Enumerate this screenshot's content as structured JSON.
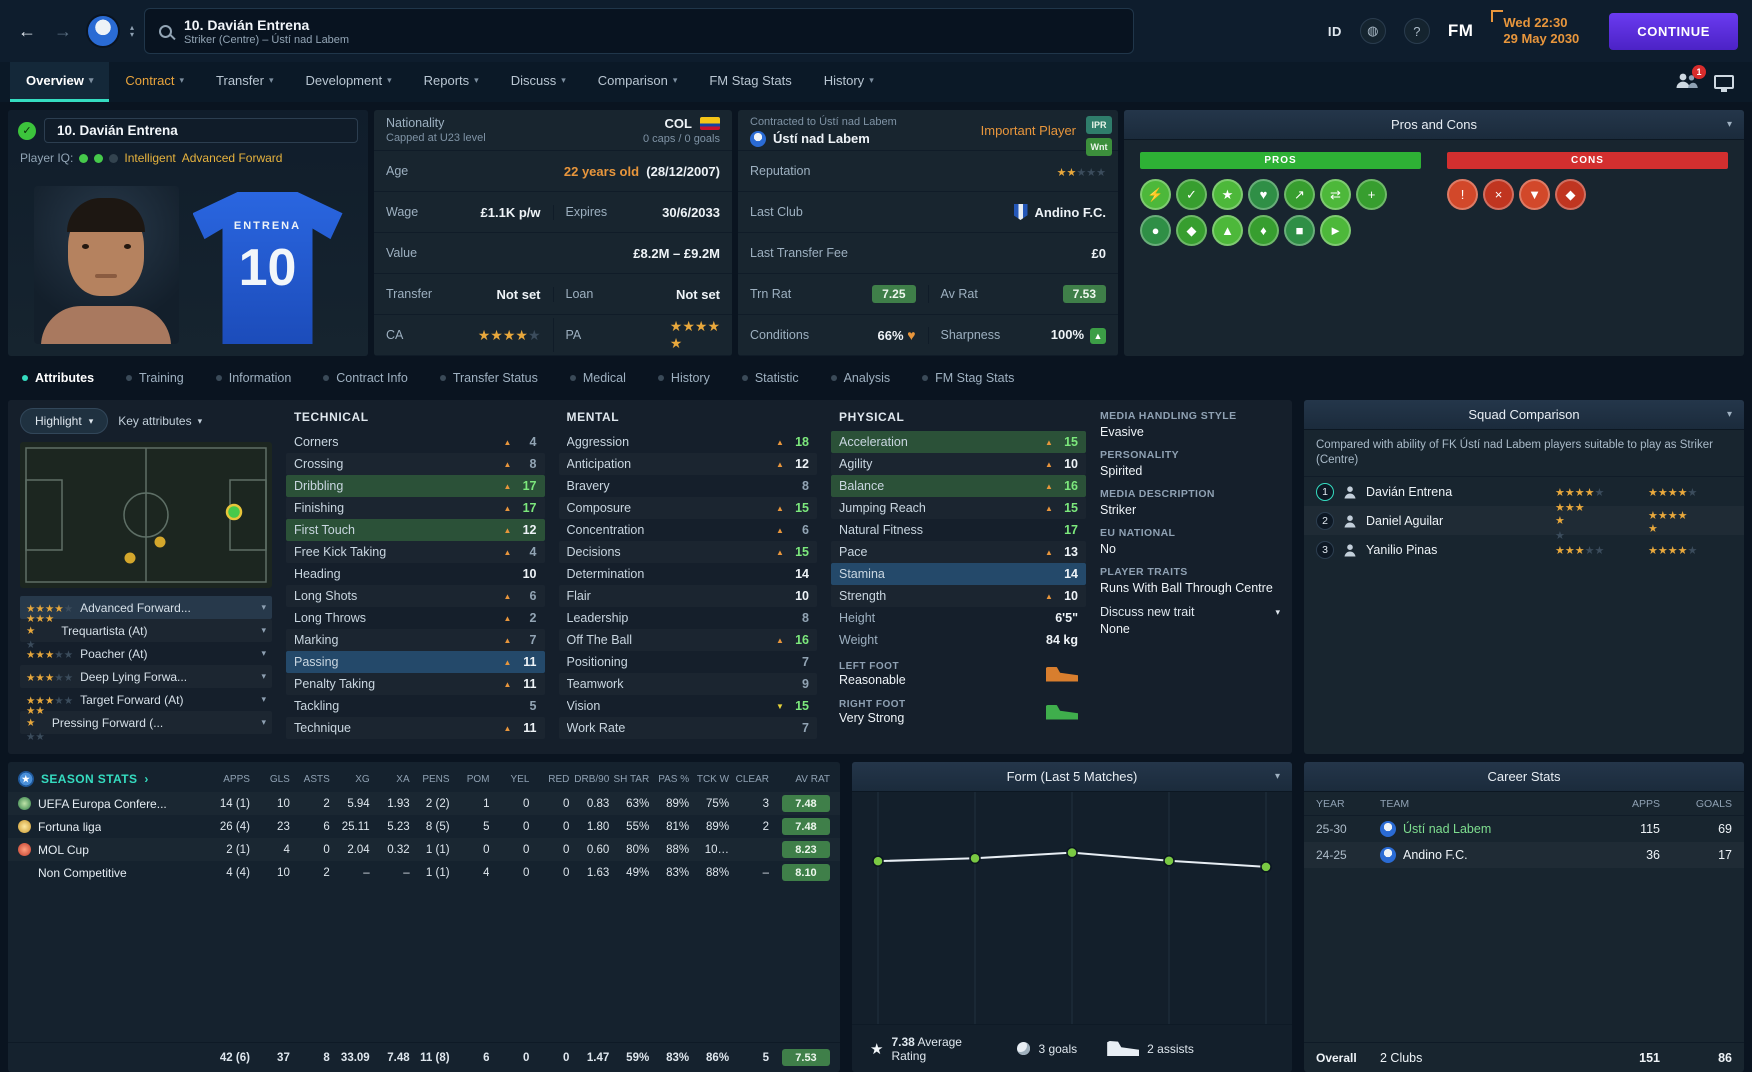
{
  "topbar": {
    "player_number_name": "10. Davián Entrena",
    "player_subtitle": "Striker (Centre) – Ústí nad Labem",
    "id_label": "ID",
    "help_label": "?",
    "fm_label": "FM",
    "date_time": "Wed 22:30",
    "date": "29 May 2030",
    "continue_label": "CONTINUE"
  },
  "nav": {
    "tabs": [
      {
        "label": "Overview",
        "caret": true,
        "state": "sel"
      },
      {
        "label": "Contract",
        "caret": true,
        "state": "warn"
      },
      {
        "label": "Transfer",
        "caret": true
      },
      {
        "label": "Development",
        "caret": true
      },
      {
        "label": "Reports",
        "caret": true
      },
      {
        "label": "Discuss",
        "caret": true
      },
      {
        "label": "Comparison",
        "caret": true
      },
      {
        "label": "FM Stag Stats"
      },
      {
        "label": "History",
        "caret": true
      }
    ],
    "notification_count": "1"
  },
  "player_card": {
    "name": "10. Davián Entrena",
    "iq_label": "Player IQ:",
    "iq_desc_1": "Intelligent",
    "iq_desc_2": "Advanced Forward",
    "shirt_name": "ENTRENA",
    "shirt_number": "10"
  },
  "info": {
    "nationality_label": "Nationality",
    "nationality_sub": "Capped at U23 level",
    "nationality_value": "COL",
    "caps": "0 caps / 0 goals",
    "age_label": "Age",
    "age_value": "22 years old",
    "birth_date": "(28/12/2007)",
    "wage_label": "Wage",
    "wage_value": "£1.1K p/w",
    "expires_label": "Expires",
    "expires_value": "30/6/2033",
    "value_label": "Value",
    "value_value": "£8.2M – £9.2M",
    "transfer_label": "Transfer",
    "transfer_value": "Not set",
    "loan_label": "Loan",
    "loan_value": "Not set",
    "ca_label": "CA",
    "ca_stars": 4,
    "pa_label": "PA",
    "pa_stars": 4.5
  },
  "contract": {
    "contracted_label": "Contracted to Ústí nad Labem",
    "club": "Ústí nad Labem",
    "importance": "Important Player",
    "badge_ipr": "IPR",
    "badge_wnt": "Wnt",
    "reputation_label": "Reputation",
    "reputation_stars": 2,
    "last_club_label": "Last Club",
    "last_club": "Andino F.C.",
    "last_fee_label": "Last Transfer Fee",
    "last_fee": "£0",
    "trn_rat_label": "Trn Rat",
    "trn_rat": "7.25",
    "av_rat_label": "Av Rat",
    "av_rat": "7.53",
    "conditions_label": "Conditions",
    "conditions": "66%",
    "sharpness_label": "Sharpness",
    "sharpness": "100%"
  },
  "pros_cons": {
    "title": "Pros and Cons",
    "pros_label": "PROS",
    "cons_label": "CONS",
    "pros_icons": [
      {
        "glyph": "⚡",
        "tone": "g1"
      },
      {
        "glyph": "✓",
        "tone": "g2"
      },
      {
        "glyph": "★",
        "tone": "g1"
      },
      {
        "glyph": "♥",
        "tone": "g3"
      },
      {
        "glyph": "↗",
        "tone": "g2"
      },
      {
        "glyph": "⇄",
        "tone": "g1"
      },
      {
        "glyph": "+",
        "tone": "g2"
      },
      {
        "glyph": "●",
        "tone": "g3"
      },
      {
        "glyph": "◆",
        "tone": "g2"
      },
      {
        "glyph": "▲",
        "tone": "g1"
      },
      {
        "glyph": "♦",
        "tone": "g2"
      },
      {
        "glyph": "■",
        "tone": "g3"
      },
      {
        "glyph": "►",
        "tone": "g1"
      }
    ],
    "cons_icons": [
      {
        "glyph": "!",
        "tone": "r1"
      },
      {
        "glyph": "×",
        "tone": "r2"
      },
      {
        "glyph": "▼",
        "tone": "r1"
      },
      {
        "glyph": "◆",
        "tone": "r2"
      }
    ]
  },
  "subtabs": [
    {
      "label": "Attributes",
      "state": "sel"
    },
    {
      "label": "Training"
    },
    {
      "label": "Information"
    },
    {
      "label": "Contract Info"
    },
    {
      "label": "Transfer Status"
    },
    {
      "label": "Medical"
    },
    {
      "label": "History"
    },
    {
      "label": "Statistic"
    },
    {
      "label": "Analysis"
    },
    {
      "label": "FM Stag Stats"
    }
  ],
  "attributes_panel": {
    "highlight_label": "Highlight",
    "key_attributes_label": "Key attributes",
    "roles": [
      {
        "stars": 4,
        "name": "Advanced Forward...",
        "state": "sel"
      },
      {
        "stars": 3.5,
        "name": "Trequartista (At)"
      },
      {
        "stars": 3,
        "name": "Poacher (At)"
      },
      {
        "stars": 3,
        "name": "Deep Lying Forwa..."
      },
      {
        "stars": 3,
        "name": "Target Forward (At)"
      },
      {
        "stars": 2.5,
        "name": "Pressing Forward (..."
      }
    ],
    "technical_title": "TECHNICAL",
    "mental_title": "MENTAL",
    "physical_title": "PHYSICAL",
    "technical": [
      {
        "name": "Corners",
        "value": 4,
        "arrow": "up"
      },
      {
        "name": "Crossing",
        "value": 8,
        "arrow": "up"
      },
      {
        "name": "Dribbling",
        "value": 17,
        "arrow": "up",
        "highlight": "green"
      },
      {
        "name": "Finishing",
        "value": 17,
        "arrow": "up",
        "highlight": "green"
      },
      {
        "name": "First Touch",
        "value": 12,
        "arrow": "up",
        "highlight": "green"
      },
      {
        "name": "Free Kick Taking",
        "value": 4,
        "arrow": "up"
      },
      {
        "name": "Heading",
        "value": 10
      },
      {
        "name": "Long Shots",
        "value": 6,
        "arrow": "up"
      },
      {
        "name": "Long Throws",
        "value": 2,
        "arrow": "up"
      },
      {
        "name": "Marking",
        "value": 7,
        "arrow": "up"
      },
      {
        "name": "Passing",
        "value": 11,
        "arrow": "up",
        "highlight": "blue"
      },
      {
        "name": "Penalty Taking",
        "value": 11,
        "arrow": "up"
      },
      {
        "name": "Tackling",
        "value": 5
      },
      {
        "name": "Technique",
        "value": 11,
        "arrow": "up",
        "highlight": "green"
      }
    ],
    "mental": [
      {
        "name": "Aggression",
        "value": 18,
        "arrow": "up"
      },
      {
        "name": "Anticipation",
        "value": 12,
        "arrow": "up",
        "highlight": "blue"
      },
      {
        "name": "Bravery",
        "value": 8
      },
      {
        "name": "Composure",
        "value": 15,
        "arrow": "up",
        "highlight": "green"
      },
      {
        "name": "Concentration",
        "value": 6,
        "arrow": "up"
      },
      {
        "name": "Decisions",
        "value": 15,
        "arrow": "up",
        "highlight": "blue"
      },
      {
        "name": "Determination",
        "value": 14
      },
      {
        "name": "Flair",
        "value": 10
      },
      {
        "name": "Leadership",
        "value": 8
      },
      {
        "name": "Off The Ball",
        "value": 16,
        "arrow": "up",
        "highlight": "green"
      },
      {
        "name": "Positioning",
        "value": 7
      },
      {
        "name": "Teamwork",
        "value": 9
      },
      {
        "name": "Vision",
        "value": 15,
        "arrow": "down"
      },
      {
        "name": "Work Rate",
        "value": 7,
        "highlight": "blue"
      }
    ],
    "physical": [
      {
        "name": "Acceleration",
        "value": 15,
        "arrow": "up",
        "highlight": "green"
      },
      {
        "name": "Agility",
        "value": 10,
        "arrow": "up",
        "highlight": "blue"
      },
      {
        "name": "Balance",
        "value": 16,
        "arrow": "up",
        "highlight": "green"
      },
      {
        "name": "Jumping Reach",
        "value": 15,
        "arrow": "up",
        "highlight": "green"
      },
      {
        "name": "Natural Fitness",
        "value": 17
      },
      {
        "name": "Pace",
        "value": 13,
        "arrow": "up",
        "highlight": "blue"
      },
      {
        "name": "Stamina",
        "value": 14,
        "highlight": "blue"
      },
      {
        "name": "Strength",
        "value": 10,
        "arrow": "up"
      }
    ],
    "height_label": "Height",
    "height": "6'5\"",
    "weight_label": "Weight",
    "weight": "84 kg",
    "left_foot_label": "LEFT FOOT",
    "left_foot": "Reasonable",
    "right_foot_label": "RIGHT FOOT",
    "right_foot": "Very Strong",
    "media_handling_label": "MEDIA HANDLING STYLE",
    "media_handling": "Evasive",
    "personality_label": "PERSONALITY",
    "personality": "Spirited",
    "media_description_label": "MEDIA DESCRIPTION",
    "media_description": "Striker",
    "eu_national_label": "EU NATIONAL",
    "eu_national": "No",
    "player_traits_label": "PLAYER TRAITS",
    "trait": "Runs With Ball Through Centre",
    "discuss_new_trait": "Discuss new trait",
    "none_label": "None"
  },
  "squad_comparison": {
    "title": "Squad Comparison",
    "description": "Compared with ability of FK Ústí nad Labem players suitable to play as Striker (Centre)",
    "rows": [
      {
        "rank": "1",
        "name": "Davián Entrena",
        "ability": 4,
        "potential": 4,
        "state": "sel"
      },
      {
        "rank": "2",
        "name": "Daniel Aguilar",
        "ability": 3.5,
        "potential": 4.5
      },
      {
        "rank": "3",
        "name": "Yanilio Pinas",
        "ability": 3,
        "potential": 4
      }
    ]
  },
  "season_stats": {
    "title": "SEASON STATS",
    "columns": [
      "APPS",
      "GLS",
      "ASTS",
      "XG",
      "XA",
      "PENS",
      "POM",
      "YEL",
      "RED",
      "DRB/90",
      "SH TAR",
      "PAS %",
      "TCK W",
      "CLEAR",
      "AV RAT"
    ],
    "rows": [
      {
        "competition": "UEFA Europa Confere...",
        "icon": "uefa",
        "values": [
          "14 (1)",
          "10",
          "2",
          "5.94",
          "1.93",
          "2 (2)",
          "1",
          "0",
          "0",
          "0.83",
          "63%",
          "89%",
          "75%",
          "3"
        ],
        "rating": "7.48"
      },
      {
        "competition": "Fortuna liga",
        "icon": "fortuna",
        "values": [
          "26 (4)",
          "23",
          "6",
          "25.11",
          "5.23",
          "8 (5)",
          "5",
          "0",
          "0",
          "1.80",
          "55%",
          "81%",
          "89%",
          "2"
        ],
        "rating": "7.48"
      },
      {
        "competition": "MOL Cup",
        "icon": "mol",
        "values": [
          "2 (1)",
          "4",
          "0",
          "2.04",
          "0.32",
          "1 (1)",
          "0",
          "0",
          "0",
          "0.60",
          "80%",
          "88%",
          "10…",
          ""
        ],
        "rating": "8.23"
      },
      {
        "competition": "Non Competitive",
        "icon": "none",
        "values": [
          "4 (4)",
          "10",
          "2",
          "–",
          "–",
          "1 (1)",
          "4",
          "0",
          "0",
          "1.63",
          "49%",
          "83%",
          "88%",
          "–"
        ],
        "rating": "8.10"
      }
    ],
    "total": {
      "values": [
        "42 (6)",
        "37",
        "8",
        "33.09",
        "7.48",
        "11 (8)",
        "6",
        "0",
        "0",
        "1.47",
        "59%",
        "83%",
        "86%",
        "5"
      ],
      "rating": "7.53"
    }
  },
  "form": {
    "title": "Form (Last 5 Matches)",
    "values": [
      7.35,
      7.42,
      7.56,
      7.36,
      7.21
    ],
    "avg_value": "7.38",
    "avg_label": "Average Rating",
    "goals": "3 goals",
    "assists": "2 assists"
  },
  "career_stats": {
    "title": "Career Stats",
    "columns": [
      "YEAR",
      "TEAM",
      "APPS",
      "GOALS"
    ],
    "rows": [
      {
        "year": "25-30",
        "team": "Ústí nad Labem",
        "apps": "115",
        "goals": "69",
        "tone": "green",
        "badge": "usti"
      },
      {
        "year": "24-25",
        "team": "Andino F.C.",
        "apps": "36",
        "goals": "17",
        "badge": "andino"
      }
    ],
    "overall_label": "Overall",
    "overall_clubs": "2 Clubs",
    "overall_apps": "151",
    "overall_goals": "86"
  }
}
